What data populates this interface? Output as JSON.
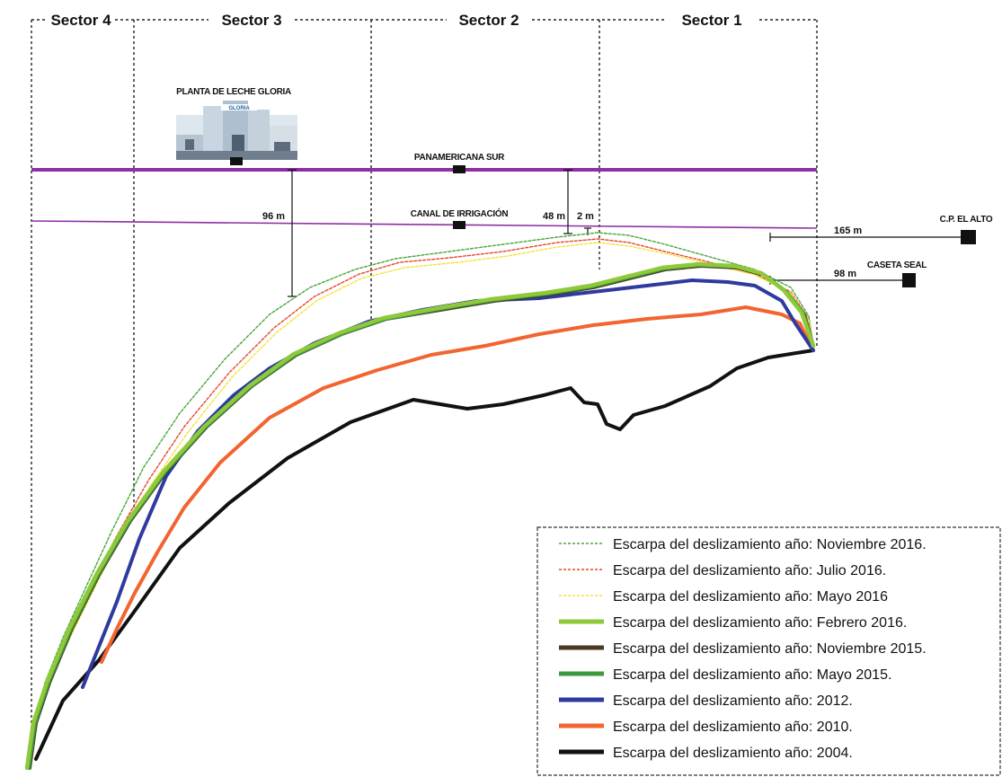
{
  "sectors": [
    "Sector 4",
    "Sector 3",
    "Sector 2",
    "Sector 1"
  ],
  "landmarks": {
    "plant": "PLANTA DE LECHE GLORIA",
    "plant_sign": "GLORIA",
    "highway": "PANAMERICANA SUR",
    "canal": "CANAL DE IRRIGACIÓN",
    "village": "C.P. EL ALTO",
    "booth": "CASETA SEAL"
  },
  "distances": {
    "d96": "96 m",
    "d48": "48 m",
    "d2": "2 m",
    "d165": "165 m",
    "d98": "98 m"
  },
  "legend": [
    {
      "label": "Escarpa del deslizamiento año: Noviembre 2016.",
      "color": "#4aa63a",
      "style": "dashed"
    },
    {
      "label": "Escarpa del deslizamiento año: Julio 2016.",
      "color": "#e8452b",
      "style": "dashed"
    },
    {
      "label": "Escarpa del deslizamiento año: Mayo 2016",
      "color": "#f4e23a",
      "style": "dashed"
    },
    {
      "label": "Escarpa del deslizamiento año: Febrero 2016.",
      "color": "#8fc93a",
      "style": "solid"
    },
    {
      "label": "Escarpa del deslizamiento año: Noviembre 2015.",
      "color": "#4b3a22",
      "style": "solid"
    },
    {
      "label": "Escarpa del deslizamiento año: Mayo 2015.",
      "color": "#3a9a3e",
      "style": "solid"
    },
    {
      "label": "Escarpa del deslizamiento año: 2012.",
      "color": "#2e3a9e",
      "style": "solid"
    },
    {
      "label": "Escarpa del deslizamiento año: 2010.",
      "color": "#f26430",
      "style": "solid"
    },
    {
      "label": "Escarpa del deslizamiento año: 2004.",
      "color": "#111111",
      "style": "solid"
    }
  ]
}
